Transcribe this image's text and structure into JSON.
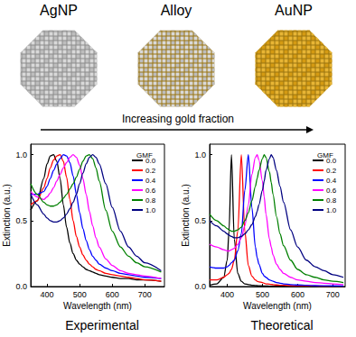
{
  "illustration": {
    "particles": [
      "AgNP",
      "Alloy",
      "AuNP"
    ],
    "arrow_label": "Increasing gold fraction"
  },
  "chart_data": [
    {
      "type": "line",
      "title": "Experimental",
      "xlabel": "Wavelength (nm)",
      "ylabel": "Extinction (a.u.)",
      "legend": "top-right",
      "legend_title": "GMF",
      "xlim": [
        350,
        760
      ],
      "xticks": [
        400,
        500,
        600,
        700
      ],
      "ylim": [
        0,
        1.08
      ],
      "yticks": [
        {
          "value": 0,
          "label": "0.0"
        },
        {
          "value": 0.5,
          "label": "0.5"
        },
        {
          "value": 1,
          "label": "1.0"
        }
      ],
      "x": [
        350,
        370,
        390,
        400,
        410,
        420,
        430,
        440,
        450,
        460,
        470,
        480,
        490,
        500,
        510,
        520,
        530,
        540,
        550,
        560,
        580,
        600,
        625,
        650,
        675,
        700,
        750
      ],
      "series": [
        {
          "name": "0.0",
          "color": "#000000",
          "values": [
            0.58,
            0.65,
            0.82,
            0.93,
            0.99,
            1.0,
            0.95,
            0.82,
            0.62,
            0.45,
            0.33,
            0.25,
            0.2,
            0.17,
            0.15,
            0.13,
            0.12,
            0.11,
            0.1,
            0.09,
            0.08,
            0.07,
            0.06,
            0.06,
            0.05,
            0.05,
            0.04
          ]
        },
        {
          "name": "0.2",
          "color": "#ff0000",
          "values": [
            0.62,
            0.65,
            0.75,
            0.82,
            0.9,
            0.96,
            0.99,
            1.0,
            0.95,
            0.83,
            0.66,
            0.5,
            0.38,
            0.3,
            0.24,
            0.2,
            0.17,
            0.15,
            0.13,
            0.12,
            0.1,
            0.09,
            0.08,
            0.07,
            0.06,
            0.05,
            0.04
          ]
        },
        {
          "name": "0.4",
          "color": "#0000ff",
          "values": [
            0.7,
            0.7,
            0.72,
            0.76,
            0.82,
            0.88,
            0.93,
            0.97,
            1.0,
            0.99,
            0.94,
            0.84,
            0.7,
            0.56,
            0.44,
            0.35,
            0.28,
            0.23,
            0.2,
            0.17,
            0.14,
            0.12,
            0.1,
            0.09,
            0.08,
            0.07,
            0.06
          ]
        },
        {
          "name": "0.6",
          "color": "#ff00ff",
          "values": [
            0.72,
            0.68,
            0.66,
            0.68,
            0.71,
            0.75,
            0.8,
            0.85,
            0.9,
            0.94,
            0.98,
            1.0,
            0.98,
            0.92,
            0.82,
            0.7,
            0.57,
            0.46,
            0.37,
            0.3,
            0.21,
            0.16,
            0.12,
            0.1,
            0.09,
            0.08,
            0.06
          ]
        },
        {
          "name": "0.8",
          "color": "#008000",
          "values": [
            0.78,
            0.7,
            0.64,
            0.62,
            0.61,
            0.61,
            0.62,
            0.64,
            0.67,
            0.7,
            0.74,
            0.78,
            0.83,
            0.89,
            0.95,
            0.99,
            1.0,
            0.97,
            0.9,
            0.8,
            0.58,
            0.42,
            0.3,
            0.23,
            0.18,
            0.15,
            0.11
          ]
        },
        {
          "name": "1.0",
          "color": "#000080",
          "values": [
            0.7,
            0.62,
            0.55,
            0.52,
            0.5,
            0.49,
            0.49,
            0.5,
            0.52,
            0.55,
            0.59,
            0.64,
            0.7,
            0.78,
            0.86,
            0.93,
            0.98,
            1.0,
            0.98,
            0.93,
            0.78,
            0.6,
            0.42,
            0.3,
            0.23,
            0.18,
            0.12
          ]
        }
      ]
    },
    {
      "type": "line",
      "title": "Theoretical",
      "xlabel": "Wavelength (nm)",
      "ylabel": "Extinction (a.u.)",
      "legend": "top-right",
      "legend_title": "GMF",
      "xlim": [
        350,
        735
      ],
      "xticks": [
        400,
        500,
        600,
        700
      ],
      "ylim": [
        0,
        1.08
      ],
      "yticks": [
        {
          "value": 0,
          "label": "0.0"
        },
        {
          "value": 0.5,
          "label": "0.5"
        },
        {
          "value": 1,
          "label": "1.0"
        }
      ],
      "x": [
        350,
        370,
        390,
        400,
        405,
        412,
        420,
        430,
        440,
        450,
        460,
        470,
        480,
        485,
        490,
        500,
        505,
        510,
        520,
        525,
        530,
        540,
        550,
        560,
        580,
        600,
        625,
        650,
        675,
        700,
        730
      ],
      "series": [
        {
          "name": "0.0",
          "color": "#000000",
          "values": [
            0.01,
            0.02,
            0.07,
            0.2,
            0.42,
            1.0,
            0.36,
            0.1,
            0.04,
            0.02,
            0.015,
            0.01,
            0.008,
            0.007,
            0.006,
            0.005,
            0.004,
            0.004,
            0.003,
            0.003,
            0.003,
            0.003,
            0.002,
            0.002,
            0.002,
            0.001,
            0.001,
            0.001,
            0.001,
            0.001,
            0.001
          ]
        },
        {
          "name": "0.2",
          "color": "#ff0000",
          "values": [
            0.05,
            0.05,
            0.07,
            0.09,
            0.1,
            0.13,
            0.2,
            0.42,
            1.0,
            0.42,
            0.16,
            0.08,
            0.05,
            0.04,
            0.035,
            0.03,
            0.025,
            0.02,
            0.018,
            0.016,
            0.015,
            0.012,
            0.01,
            0.009,
            0.007,
            0.006,
            0.005,
            0.004,
            0.003,
            0.003,
            0.002
          ]
        },
        {
          "name": "0.4",
          "color": "#0000ff",
          "values": [
            0.15,
            0.14,
            0.14,
            0.15,
            0.16,
            0.18,
            0.2,
            0.27,
            0.4,
            0.73,
            1.0,
            0.6,
            0.3,
            0.22,
            0.17,
            0.1,
            0.08,
            0.07,
            0.05,
            0.045,
            0.04,
            0.03,
            0.025,
            0.02,
            0.015,
            0.012,
            0.009,
            0.007,
            0.006,
            0.005,
            0.004
          ]
        },
        {
          "name": "0.6",
          "color": "#ff00ff",
          "values": [
            0.32,
            0.3,
            0.28,
            0.27,
            0.27,
            0.28,
            0.29,
            0.32,
            0.37,
            0.46,
            0.62,
            0.85,
            0.98,
            1.0,
            0.96,
            0.8,
            0.68,
            0.55,
            0.36,
            0.3,
            0.24,
            0.17,
            0.13,
            0.1,
            0.07,
            0.05,
            0.04,
            0.03,
            0.025,
            0.02,
            0.015
          ]
        },
        {
          "name": "0.8",
          "color": "#008000",
          "values": [
            0.55,
            0.5,
            0.46,
            0.44,
            0.43,
            0.42,
            0.42,
            0.43,
            0.45,
            0.5,
            0.56,
            0.65,
            0.76,
            0.82,
            0.88,
            0.97,
            1.0,
            0.98,
            0.87,
            0.79,
            0.7,
            0.53,
            0.4,
            0.31,
            0.2,
            0.13,
            0.09,
            0.07,
            0.05,
            0.04,
            0.03
          ]
        },
        {
          "name": "1.0",
          "color": "#000080",
          "values": [
            0.5,
            0.46,
            0.42,
            0.4,
            0.39,
            0.38,
            0.37,
            0.37,
            0.38,
            0.4,
            0.43,
            0.47,
            0.53,
            0.57,
            0.62,
            0.73,
            0.8,
            0.88,
            0.97,
            1.0,
            0.98,
            0.88,
            0.76,
            0.64,
            0.43,
            0.3,
            0.2,
            0.15,
            0.12,
            0.09,
            0.07
          ]
        }
      ]
    }
  ]
}
